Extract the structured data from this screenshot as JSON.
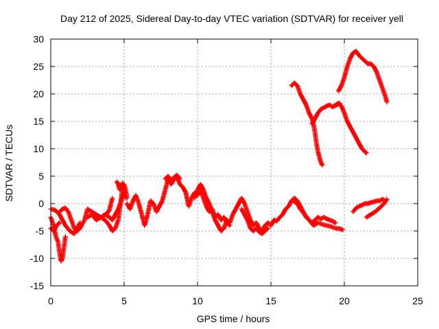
{
  "chart_data": {
    "type": "scatter",
    "title": "Day 212 of 2025, Sidereal Day-to-day VTEC variation (SDTVAR) for receiver yell",
    "xlabel": "GPS time / hours",
    "ylabel": "SDTVAR / TECUs",
    "xlim": [
      0,
      25
    ],
    "ylim": [
      -15,
      30
    ],
    "x_ticks": [
      0,
      5,
      10,
      15,
      20,
      25
    ],
    "y_ticks": [
      -15,
      -10,
      -5,
      0,
      5,
      10,
      15,
      20,
      25,
      30
    ],
    "x_tick_labels": [
      "0",
      "5",
      "10",
      "15",
      "20",
      "25"
    ],
    "y_tick_labels": [
      "-15",
      "-10",
      "-5",
      "0",
      "5",
      "10",
      "15",
      "20",
      "25",
      "30"
    ],
    "grid": true,
    "marker": "+",
    "color": "#ff0000",
    "series": [
      {
        "points": [
          [
            0,
            -2.5
          ],
          [
            0.2,
            -4
          ],
          [
            0.35,
            -6
          ],
          [
            0.5,
            -7
          ],
          [
            0.6,
            -9
          ],
          [
            0.7,
            -10.5
          ],
          [
            0.8,
            -10
          ],
          [
            0.9,
            -8
          ],
          [
            1.0,
            -6
          ]
        ]
      },
      {
        "points": [
          [
            0,
            -4.5
          ],
          [
            0.2,
            -5
          ],
          [
            0.4,
            -4
          ],
          [
            0.6,
            -3.5
          ]
        ]
      },
      {
        "points": [
          [
            0,
            -1
          ],
          [
            0.3,
            -1.2
          ],
          [
            0.6,
            -2
          ],
          [
            0.8,
            -3
          ],
          [
            1.0,
            -4
          ],
          [
            1.3,
            -5
          ],
          [
            1.6,
            -5.5
          ],
          [
            1.8,
            -4.5
          ],
          [
            2.0,
            -3.5
          ]
        ]
      },
      {
        "points": [
          [
            0.6,
            -1.5
          ],
          [
            0.8,
            -1
          ],
          [
            1.0,
            -0.8
          ],
          [
            1.2,
            -1.5
          ],
          [
            1.4,
            -3
          ],
          [
            1.6,
            -4.5
          ],
          [
            1.8,
            -5
          ],
          [
            2.0,
            -4.5
          ],
          [
            2.3,
            -3
          ],
          [
            2.5,
            -1
          ],
          [
            2.8,
            -1.5
          ],
          [
            3.1,
            -2
          ],
          [
            3.4,
            -2.5
          ],
          [
            3.7,
            -2
          ],
          [
            4.0,
            -2.5
          ],
          [
            4.2,
            -3
          ],
          [
            4.4,
            -2
          ],
          [
            4.6,
            -1
          ],
          [
            4.8,
            0.5
          ],
          [
            5.0,
            2
          ],
          [
            5.1,
            1
          ]
        ]
      },
      {
        "points": [
          [
            2.5,
            -2.5
          ],
          [
            2.8,
            -2
          ],
          [
            3.1,
            -3
          ],
          [
            3.4,
            -2.5
          ],
          [
            3.7,
            -3
          ],
          [
            4.0,
            -4
          ],
          [
            4.2,
            -5
          ],
          [
            4.4,
            -4.5
          ],
          [
            4.6,
            -3
          ],
          [
            4.7,
            -1
          ],
          [
            4.8,
            1
          ],
          [
            4.9,
            3
          ],
          [
            5.0,
            3.5
          ],
          [
            5.1,
            2.5
          ],
          [
            5.2,
            1
          ]
        ]
      },
      {
        "points": [
          [
            3.8,
            -2
          ],
          [
            3.9,
            -1.5
          ],
          [
            4.0,
            -1.2
          ],
          [
            4.1,
            0
          ],
          [
            4.2,
            1
          ]
        ]
      },
      {
        "points": [
          [
            4.5,
            4
          ],
          [
            4.6,
            3.5
          ],
          [
            4.7,
            2.5
          ],
          [
            4.8,
            3
          ],
          [
            4.9,
            3.8
          ]
        ]
      },
      {
        "points": [
          [
            5.2,
            0
          ],
          [
            5.4,
            -1
          ],
          [
            5.6,
            0.5
          ],
          [
            5.8,
            1.5
          ],
          [
            6.0,
            0
          ],
          [
            6.2,
            -2
          ],
          [
            6.4,
            -4
          ],
          [
            6.6,
            -2
          ],
          [
            6.8,
            0.5
          ],
          [
            7.0,
            0
          ],
          [
            7.2,
            -1.5
          ],
          [
            7.4,
            -0.5
          ],
          [
            7.6,
            0.5
          ],
          [
            7.8,
            2.5
          ],
          [
            8.0,
            4.5
          ],
          [
            8.2,
            3.5
          ],
          [
            8.4,
            4.5
          ],
          [
            8.6,
            4.8
          ],
          [
            8.8,
            3.5
          ],
          [
            9.0,
            3
          ],
          [
            9.2,
            2
          ],
          [
            9.4,
            -0.5
          ],
          [
            9.6,
            1
          ],
          [
            9.8,
            2
          ],
          [
            10.0,
            1.5
          ],
          [
            10.2,
            2.5
          ],
          [
            10.4,
            1
          ],
          [
            10.6,
            -0.5
          ],
          [
            10.8,
            -1.5
          ],
          [
            11.0,
            -1
          ],
          [
            11.2,
            -2.5
          ],
          [
            11.4,
            -2
          ],
          [
            11.6,
            -3
          ],
          [
            11.8,
            -2.5
          ],
          [
            12.0,
            -3.5
          ],
          [
            12.2,
            -4
          ]
        ]
      },
      {
        "points": [
          [
            7.8,
            4.5
          ],
          [
            8.0,
            5
          ],
          [
            8.2,
            4
          ],
          [
            8.4,
            4.8
          ],
          [
            8.6,
            5.2
          ],
          [
            8.8,
            4.5
          ]
        ]
      },
      {
        "points": [
          [
            9.8,
            1
          ],
          [
            10.0,
            2.5
          ],
          [
            10.2,
            3.5
          ],
          [
            10.4,
            2.5
          ],
          [
            10.6,
            1
          ],
          [
            10.8,
            0
          ],
          [
            11.0,
            -1.5
          ],
          [
            11.2,
            -3
          ],
          [
            11.4,
            -4
          ],
          [
            11.6,
            -5
          ],
          [
            11.8,
            -4.5
          ],
          [
            12.0,
            -3
          ],
          [
            12.2,
            -3.5
          ],
          [
            12.4,
            -2
          ],
          [
            12.6,
            -1
          ],
          [
            12.8,
            0
          ],
          [
            13.0,
            1
          ],
          [
            13.2,
            0
          ],
          [
            13.4,
            -1.5
          ],
          [
            13.6,
            -3
          ],
          [
            13.8,
            -4
          ],
          [
            14.0,
            -3.5
          ],
          [
            14.2,
            -4.5
          ],
          [
            14.4,
            -5
          ],
          [
            14.6,
            -4
          ],
          [
            14.8,
            -3.5
          ],
          [
            15.0,
            -4
          ],
          [
            15.2,
            -3
          ],
          [
            15.4,
            -3.2
          ],
          [
            15.6,
            -2.5
          ],
          [
            15.8,
            -2
          ],
          [
            16.0,
            -1
          ],
          [
            16.2,
            -0.5
          ],
          [
            16.4,
            0.5
          ],
          [
            16.6,
            1
          ],
          [
            16.8,
            0.5
          ],
          [
            17.0,
            -0.5
          ],
          [
            17.2,
            -1.5
          ],
          [
            17.4,
            -2.5
          ],
          [
            17.6,
            -3
          ],
          [
            17.8,
            -3.5
          ],
          [
            18.0,
            -3
          ],
          [
            18.2,
            -2.5
          ],
          [
            18.4,
            -2.8
          ],
          [
            18.6,
            -2.5
          ],
          [
            18.8,
            -2.8
          ],
          [
            19.0,
            -3
          ],
          [
            19.2,
            -3.2
          ],
          [
            19.4,
            -3.5
          ]
        ]
      },
      {
        "points": [
          [
            13.0,
            -1
          ],
          [
            13.2,
            -2
          ],
          [
            13.4,
            -3
          ],
          [
            13.6,
            -4.5
          ],
          [
            13.8,
            -5
          ],
          [
            14.0,
            -4.5
          ],
          [
            14.2,
            -5.2
          ],
          [
            14.4,
            -5.5
          ],
          [
            14.6,
            -5
          ],
          [
            14.8,
            -4.5
          ]
        ]
      },
      {
        "points": [
          [
            16.5,
            0.5
          ],
          [
            16.8,
            0
          ],
          [
            17.0,
            -1
          ],
          [
            17.3,
            -2
          ],
          [
            17.6,
            -3
          ],
          [
            17.9,
            -4
          ],
          [
            18.2,
            -3.5
          ],
          [
            18.5,
            -3.8
          ],
          [
            18.8,
            -4
          ],
          [
            19.1,
            -4.2
          ],
          [
            19.4,
            -4.5
          ],
          [
            19.7,
            -4.6
          ],
          [
            19.9,
            -4.8
          ]
        ]
      },
      {
        "points": [
          [
            20.6,
            -1.5
          ],
          [
            20.8,
            -0.8
          ],
          [
            21.0,
            -0.5
          ],
          [
            21.2,
            -0.3
          ],
          [
            21.4,
            0
          ],
          [
            21.6,
            0
          ],
          [
            21.8,
            0.2
          ],
          [
            22.0,
            0.3
          ],
          [
            22.2,
            0.5
          ],
          [
            22.4,
            0.5
          ],
          [
            22.6,
            0.8
          ],
          [
            22.8,
            0.5
          ]
        ]
      },
      {
        "points": [
          [
            21.5,
            -2.5
          ],
          [
            21.8,
            -2
          ],
          [
            22.1,
            -1.5
          ],
          [
            22.4,
            -0.8
          ],
          [
            22.7,
            0
          ],
          [
            22.9,
            0.8
          ]
        ]
      },
      {
        "points": [
          [
            16.4,
            21.5
          ],
          [
            16.6,
            22
          ],
          [
            16.8,
            21.5
          ],
          [
            17.0,
            20
          ],
          [
            17.2,
            19
          ],
          [
            17.4,
            18
          ],
          [
            17.6,
            16.5
          ],
          [
            17.8,
            15.5
          ],
          [
            17.9,
            14.5
          ],
          [
            18.0,
            13
          ],
          [
            18.1,
            11
          ],
          [
            18.2,
            9.5
          ],
          [
            18.3,
            8.5
          ],
          [
            18.4,
            7.5
          ],
          [
            18.5,
            7
          ]
        ]
      },
      {
        "points": [
          [
            17.8,
            14.5
          ],
          [
            18.0,
            15.5
          ],
          [
            18.2,
            16.5
          ],
          [
            18.4,
            17.2
          ],
          [
            18.6,
            17.5
          ],
          [
            18.8,
            17.8
          ],
          [
            19.0,
            18
          ],
          [
            19.2,
            17.6
          ],
          [
            19.4,
            18
          ],
          [
            19.6,
            18.3
          ],
          [
            19.8,
            17.8
          ],
          [
            20.0,
            16.5
          ],
          [
            20.2,
            15
          ],
          [
            20.4,
            14
          ],
          [
            20.6,
            13
          ],
          [
            20.8,
            12
          ],
          [
            21.0,
            11
          ],
          [
            21.2,
            10
          ],
          [
            21.4,
            9.5
          ],
          [
            21.5,
            9.2
          ]
        ]
      },
      {
        "points": [
          [
            19.3,
            17.8
          ],
          [
            19.5,
            18
          ],
          [
            19.7,
            18.3
          ]
        ]
      },
      {
        "points": [
          [
            19.6,
            20.5
          ],
          [
            19.8,
            21.5
          ],
          [
            20.0,
            23
          ],
          [
            20.2,
            25
          ],
          [
            20.4,
            26.5
          ],
          [
            20.6,
            27.5
          ],
          [
            20.8,
            27.8
          ],
          [
            21.0,
            27
          ],
          [
            21.2,
            26.5
          ],
          [
            21.4,
            26
          ],
          [
            21.6,
            25.5
          ],
          [
            21.8,
            25.5
          ],
          [
            22.0,
            25
          ],
          [
            22.2,
            24
          ],
          [
            22.4,
            22.5
          ],
          [
            22.6,
            21
          ],
          [
            22.8,
            19.5
          ],
          [
            22.9,
            18.5
          ]
        ]
      }
    ]
  }
}
